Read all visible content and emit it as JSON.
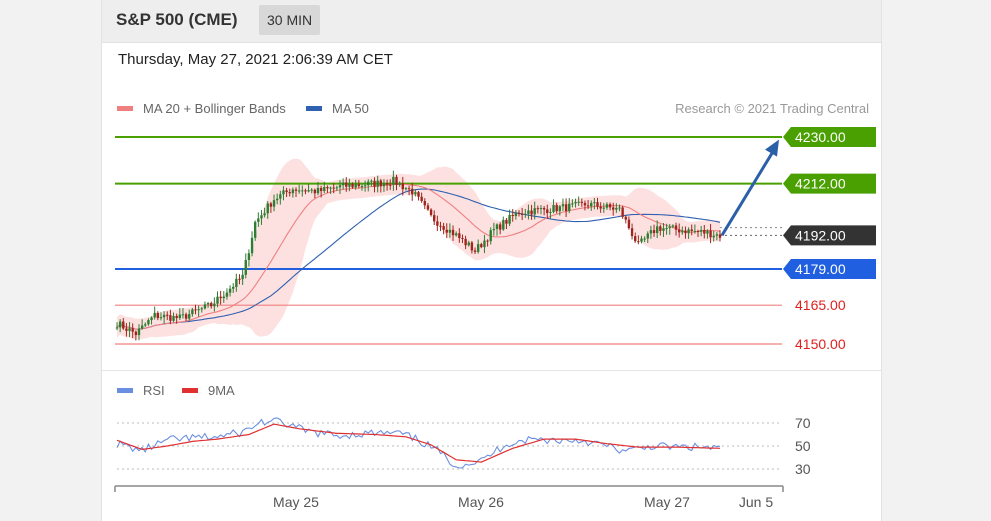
{
  "header": {
    "title": "S&P 500 (CME)",
    "interval": "30 MIN"
  },
  "timestamp": "Thursday, May 27, 2021 2:06:39 AM CET",
  "credit": "Research © 2021 Trading Central",
  "colors": {
    "resistance": "#4aa000",
    "support": "#2060e0",
    "pivot": "#333333",
    "weak_support": "#f08080",
    "ma20": "#f08080",
    "bands": "#fddcdc",
    "ma50": "#3060b0",
    "bull": "#2e7d32",
    "bear": "#a0241c",
    "rsi": "#6a8fe0",
    "rsi_ma": "#e03030",
    "arrow": "#2b5fa8"
  },
  "chart_data": [
    {
      "type": "candlestick",
      "legend": [
        "MA 20 + Bollinger Bands",
        "MA 50"
      ],
      "ylim": [
        4141,
        4235
      ],
      "levels": [
        {
          "value": 4230.0,
          "label": "4230.00",
          "kind": "resistance"
        },
        {
          "value": 4212.0,
          "label": "4212.00",
          "kind": "resistance"
        },
        {
          "value": 4192.0,
          "label": "4192.00",
          "kind": "pivot"
        },
        {
          "value": 4179.0,
          "label": "4179.00",
          "kind": "support"
        },
        {
          "value": 4165.0,
          "label": "4165.00",
          "kind": "weak_support"
        },
        {
          "value": 4150.0,
          "label": "4150.00",
          "kind": "weak_support"
        }
      ],
      "projection": {
        "from": 4192,
        "to": 4229
      },
      "x_ticks": [
        "May 25",
        "May 26",
        "May 27",
        "Jun 5"
      ],
      "close_anchors": [
        [
          0,
          4158
        ],
        [
          6,
          4154
        ],
        [
          12,
          4161
        ],
        [
          20,
          4160
        ],
        [
          30,
          4165
        ],
        [
          40,
          4176
        ],
        [
          44,
          4197
        ],
        [
          50,
          4206
        ],
        [
          56,
          4210
        ],
        [
          64,
          4209
        ],
        [
          72,
          4211
        ],
        [
          82,
          4212
        ],
        [
          88,
          4213
        ],
        [
          94,
          4209
        ],
        [
          100,
          4199
        ],
        [
          108,
          4192
        ],
        [
          114,
          4186
        ],
        [
          120,
          4194
        ],
        [
          128,
          4201
        ],
        [
          136,
          4202
        ],
        [
          144,
          4203
        ],
        [
          150,
          4204
        ],
        [
          160,
          4202
        ],
        [
          166,
          4188
        ],
        [
          172,
          4195
        ],
        [
          180,
          4194
        ],
        [
          188,
          4193
        ],
        [
          192,
          4192
        ]
      ]
    },
    {
      "type": "line",
      "legend": [
        "RSI",
        "9MA"
      ],
      "ylim": [
        20,
        80
      ],
      "y_ticks": [
        70,
        50,
        30
      ],
      "rsi_anchors": [
        [
          0,
          52
        ],
        [
          8,
          46
        ],
        [
          16,
          55
        ],
        [
          24,
          57
        ],
        [
          32,
          58
        ],
        [
          40,
          62
        ],
        [
          46,
          71
        ],
        [
          52,
          71
        ],
        [
          60,
          63
        ],
        [
          70,
          59
        ],
        [
          80,
          61
        ],
        [
          90,
          61
        ],
        [
          96,
          55
        ],
        [
          102,
          46
        ],
        [
          108,
          33
        ],
        [
          116,
          37
        ],
        [
          124,
          52
        ],
        [
          132,
          56
        ],
        [
          140,
          55
        ],
        [
          148,
          55
        ],
        [
          156,
          50
        ],
        [
          162,
          45
        ],
        [
          170,
          50
        ],
        [
          178,
          49
        ],
        [
          186,
          49
        ],
        [
          192,
          48
        ]
      ],
      "rsi_ma_anchors": [
        [
          0,
          55
        ],
        [
          8,
          47
        ],
        [
          16,
          50
        ],
        [
          24,
          54
        ],
        [
          32,
          56
        ],
        [
          42,
          60
        ],
        [
          50,
          69
        ],
        [
          58,
          65
        ],
        [
          70,
          61
        ],
        [
          82,
          60
        ],
        [
          92,
          58
        ],
        [
          100,
          51
        ],
        [
          108,
          38
        ],
        [
          116,
          36
        ],
        [
          126,
          48
        ],
        [
          136,
          56
        ],
        [
          146,
          56
        ],
        [
          156,
          52
        ],
        [
          166,
          49
        ],
        [
          178,
          49
        ],
        [
          192,
          48
        ]
      ]
    }
  ]
}
